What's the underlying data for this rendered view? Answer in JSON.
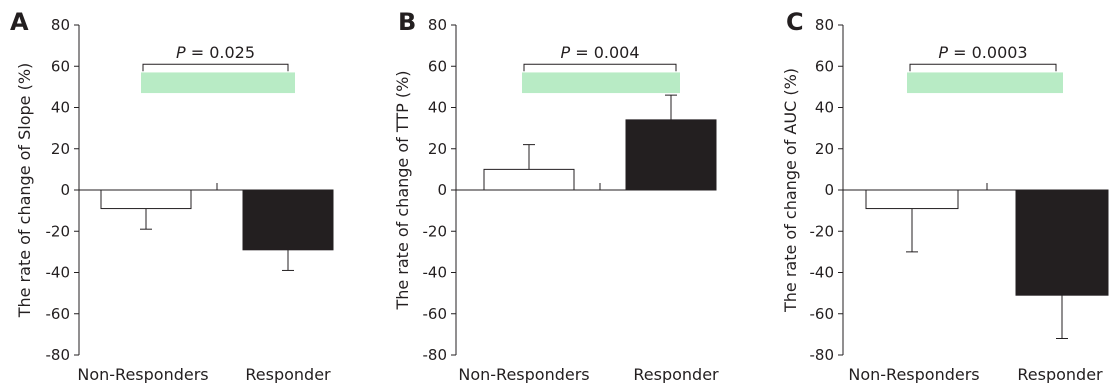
{
  "chart_data": [
    {
      "type": "bar",
      "panel_label": "A",
      "categories": [
        "Non-Responders",
        "Responder"
      ],
      "values": [
        -9,
        -29
      ],
      "error": [
        10,
        10
      ],
      "ylabel": "The rate of change of Slope (%)",
      "ylim": [
        -80,
        80
      ],
      "yticks": [
        "80",
        "60",
        "40",
        "20",
        "0",
        "-20",
        "-40",
        "-60",
        "-80"
      ],
      "pvalue_label": "P",
      "pvalue_text": " = 0.025",
      "grid": false,
      "colors": {
        "bars": [
          "#ffffff",
          "#231f20"
        ],
        "highlight": "#b8ebc5"
      }
    },
    {
      "type": "bar",
      "panel_label": "B",
      "categories": [
        "Non-Responders",
        "Responder"
      ],
      "values": [
        10,
        34
      ],
      "error": [
        12,
        12
      ],
      "ylabel": "The rate of change of TTP (%)",
      "ylim": [
        -80,
        80
      ],
      "yticks": [
        "80",
        "60",
        "40",
        "20",
        "0",
        "-20",
        "-40",
        "-60",
        "-80"
      ],
      "pvalue_label": "P",
      "pvalue_text": " = 0.004",
      "grid": false,
      "colors": {
        "bars": [
          "#ffffff",
          "#231f20"
        ],
        "highlight": "#b8ebc5"
      }
    },
    {
      "type": "bar",
      "panel_label": "C",
      "categories": [
        "Non-Responders",
        "Responder"
      ],
      "values": [
        -9,
        -51
      ],
      "error": [
        21,
        21
      ],
      "ylabel": "The rate  of change of AUC (%)",
      "ylim": [
        -80,
        80
      ],
      "yticks": [
        "80",
        "60",
        "40",
        "20",
        "0",
        "-20",
        "-40",
        "-60",
        "-80"
      ],
      "pvalue_label": "P",
      "pvalue_text": " = 0.0003",
      "grid": false,
      "colors": {
        "bars": [
          "#ffffff",
          "#231f20"
        ],
        "highlight": "#b8ebc5"
      }
    }
  ]
}
